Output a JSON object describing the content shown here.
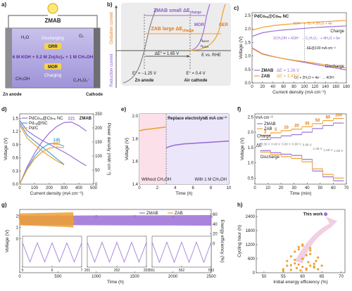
{
  "diagrams": {
    "a": {
      "panel": "a)",
      "title": "ZMAB",
      "discharging": "Discharging",
      "orr": "ORR",
      "electrolyte": "6 M KOH + 0.2 M Zn(Ac)₂ + 1 M CH₃OH",
      "mor": "MOR",
      "charging": "Charging",
      "anode": "Zn anode",
      "cathode": "Cathode",
      "species": [
        "H₂O",
        "O₂",
        "CH₃OH",
        "C₂H₃O₂⁻"
      ]
    },
    "b": {
      "panel": "b)",
      "zmab": "ZMAB small ΔE",
      "zab": "ZAB large ΔE",
      "sub": "charge",
      "oxidation": "Oxidation current",
      "reduction": "Reduction current",
      "mor": "MOR",
      "oer": "OER",
      "delta": "ΔE° = 1.65 V",
      "eta": "η",
      "eta_mor": "MOR",
      "eta_oer": "OER",
      "axis": "E vs. RHE",
      "e_zn": "E° = −1.25 V",
      "zn": "Zn anode",
      "e_air": "E° = 0.4 V",
      "air": "Air cathode"
    }
  },
  "chart_data": [
    {
      "type": "line",
      "panel": "c)",
      "title": "PdCoₛₐ@Coₙₚ NC",
      "xlabel": "Current density (mA cm⁻²)",
      "ylabel": "Voltage (V)",
      "x": [
        0,
        20,
        40,
        60,
        80,
        100,
        120,
        140,
        160,
        180
      ],
      "xlim": [
        0,
        180
      ],
      "xticks": [
        0,
        20,
        40,
        60,
        80,
        100,
        120,
        140,
        160,
        180
      ],
      "ylim": [
        0,
        2.6
      ],
      "yticks": [
        {
          "value": 0,
          "label": "0.0"
        },
        0.5,
        {
          "value": 1,
          "label": "1.0"
        },
        1.5,
        {
          "value": 2,
          "label": "2.0"
        },
        2.5
      ],
      "series": [
        {
          "name": "ZMAB",
          "note": "ΔE = 1.26 V",
          "color": "#9b6fd6",
          "charge": [
            1.72,
            1.86,
            1.92,
            1.96,
            1.99,
            2.02,
            2.05,
            2.07,
            2.09,
            2.11
          ],
          "discharge": [
            1.3,
            1.08,
            0.98,
            0.9,
            0.83,
            0.76,
            0.69,
            0.62,
            0.55,
            0.48
          ]
        },
        {
          "name": "ZAB",
          "note": "ΔE = 1.43 V",
          "color": "#f0a030",
          "charge": [
            1.95,
            2.06,
            2.12,
            2.16,
            2.19,
            2.22,
            2.25,
            2.27,
            2.29,
            2.31
          ],
          "discharge": [
            1.28,
            1.06,
            0.97,
            0.9,
            0.84,
            0.79,
            0.73,
            0.67,
            0.61,
            0.55
          ]
        }
      ],
      "annotations": {
        "charge": "Charge",
        "discharge": "Discharge",
        "delta": "ΔE@100 mA cm⁻²",
        "eq1": "4OH⁻ → O₂ + 2H₂O + 4e⁻",
        "eq2": "2CH₃OH + 6OH⁻ → C₂H₃O₂⁻ + 4H₂O + 6e⁻",
        "eq3": "O₂ + 2H₂O + 4e⁻ → 4OH⁻"
      }
    },
    {
      "type": "polarization",
      "panel": "d)",
      "title": "ZMAB",
      "xlabel": "Current density (mA cm⁻²)",
      "ylabel": "Voltage (V)",
      "y2label": "Power density (mW cm⁻²)",
      "x": [
        0,
        50,
        100,
        150,
        200,
        250,
        300,
        350,
        400,
        450
      ],
      "xlim": [
        0,
        500
      ],
      "xticks": [
        0,
        100,
        200,
        300,
        400,
        500
      ],
      "ylim": [
        0,
        1.6
      ],
      "yticks": [
        {
          "value": 0,
          "label": "0.0"
        },
        0.3,
        0.6,
        0.9,
        1.2,
        1.5
      ],
      "y2lim": [
        0,
        250
      ],
      "y2ticks": [
        0,
        50,
        100,
        150,
        200,
        250
      ],
      "series": [
        {
          "name": "PdCoₛₐ@Coₙₚ NC",
          "color": "#9b6fd6",
          "peak": 7,
          "voltage": [
            1.45,
            1.22,
            1.1,
            1.0,
            0.91,
            0.82,
            0.73,
            0.63,
            0.52,
            0.42
          ],
          "power": [
            0,
            61,
            110,
            150,
            182,
            205,
            219,
            221,
            208,
            189
          ]
        },
        {
          "name": "Pdₛₐ@NC",
          "color": "#4aa3d8",
          "peak": 5,
          "voltage": [
            1.4,
            1.12,
            0.98,
            0.85,
            0.72,
            0.58,
            0.45,
            null,
            null,
            null
          ],
          "power": [
            0,
            56,
            98,
            128,
            144,
            145,
            135,
            null,
            null,
            null
          ]
        },
        {
          "name": "Pd/C",
          "color": "#f0a030",
          "peak": 5,
          "voltage": [
            1.35,
            1.05,
            0.9,
            0.76,
            0.64,
            0.53,
            0.44,
            null,
            null,
            null
          ],
          "power": [
            0,
            52,
            90,
            114,
            128,
            132,
            130,
            null,
            null,
            null
          ]
        }
      ]
    },
    {
      "type": "line",
      "panel": "e)",
      "xlabel": "Time (h)",
      "ylabel": "Voltage (V)",
      "xlim": [
        0,
        10
      ],
      "xticks": [
        0,
        2,
        4,
        6,
        8,
        10
      ],
      "ylim": [
        1.4,
        2.02
      ],
      "yticks": [
        1.4,
        1.6,
        1.8,
        {
          "value": 2,
          "label": "2.0"
        }
      ],
      "switch": 3,
      "series": [
        {
          "color": "#f0a030",
          "x": [
            0,
            0.5,
            1,
            1.5,
            2,
            2.5,
            3
          ],
          "values": [
            1.87,
            1.88,
            1.885,
            1.89,
            1.895,
            1.9,
            1.905
          ]
        },
        {
          "color": "#9b6fd6",
          "x": [
            3,
            3.5,
            4,
            5,
            6,
            7,
            8,
            9,
            10
          ],
          "values": [
            1.72,
            1.735,
            1.745,
            1.755,
            1.76,
            1.765,
            1.77,
            1.775,
            1.78
          ]
        }
      ],
      "annotations": {
        "replace": "Replace electrolyte",
        "current": "5 mA cm⁻²",
        "without": "Without CH₃OH",
        "with": "With 1 M CH₃OH"
      }
    },
    {
      "type": "step",
      "panel": "f)",
      "xlabel": "Time (min)",
      "ylabel": "Voltage (V)",
      "unit": "mA cm⁻²",
      "xlim": [
        0,
        70
      ],
      "xticks": [
        0,
        10,
        20,
        30,
        40,
        50,
        60,
        70
      ],
      "ylim": [
        0.3,
        2.6
      ],
      "yticks": [
        0.5,
        {
          "value": 1,
          "label": "1.0"
        },
        1.5,
        {
          "value": 2,
          "label": "2.0"
        },
        2.5
      ],
      "edges": [
        4,
        12,
        20,
        28,
        36,
        44,
        52,
        60,
        68
      ],
      "currents": [
        2,
        5,
        10,
        20,
        30,
        50,
        80,
        100
      ],
      "series": [
        {
          "name": "ZMAB",
          "color": "#9b6fd6",
          "charge": [
            1.76,
            1.82,
            1.88,
            1.92,
            2.0,
            2.12,
            2.22,
            2.3
          ],
          "discharge": [
            1.4,
            1.33,
            1.28,
            1.24,
            1.11,
            0.73,
            0.54,
            0.41
          ]
        },
        {
          "name": "ZAB",
          "color": "#f0a030",
          "charge": [
            1.9,
            1.98,
            2.05,
            2.1,
            2.18,
            2.28,
            2.38,
            2.45
          ],
          "discharge": [
            1.35,
            1.27,
            1.2,
            1.14,
            1.03,
            0.8,
            0.62,
            0.5
          ]
        }
      ],
      "annotations": {
        "charge": "Charge",
        "discharge": "Discharge",
        "delta": "ΔE",
        "delta_labels": [
          "0.36 V",
          "0.49 V",
          "0.60 V",
          "0.68 V",
          "0.89 V",
          "1.39 V",
          "1.68 V",
          "1.89 V"
        ]
      }
    },
    {
      "type": "cycling",
      "panel": "g)",
      "xlabel": "Time (h)",
      "ylabel": "Voltage (V)",
      "y2label": "Energy efficiency (%)",
      "xlim": [
        0,
        2500
      ],
      "xticks": [
        0,
        500,
        1000,
        1500,
        2000,
        2500
      ],
      "ylim": [
        -3,
        2.6
      ],
      "yticks": [
        0,
        1,
        2
      ],
      "y2lim": [
        -60,
        70
      ],
      "y2ticks": [
        0,
        20,
        40,
        60
      ],
      "series": [
        {
          "name": "ZMAB",
          "color": "#9b6fd6",
          "x": [
            0,
            500,
            1000,
            1500,
            2000,
            2500
          ],
          "charge": [
            2.05,
            2.06,
            2.07,
            2.08,
            2.09,
            2.1
          ],
          "discharge": [
            1.22,
            1.21,
            1.2,
            1.19,
            1.18,
            1.17
          ],
          "efficiency": [
            57,
            57,
            56,
            56,
            55,
            55
          ]
        },
        {
          "name": "ZAB",
          "color": "#f0a030",
          "x": [
            0,
            200,
            400,
            600,
            700
          ],
          "charge": [
            2.25,
            2.28,
            2.3,
            2.33,
            2.35
          ],
          "discharge": [
            1.2,
            1.15,
            1.1,
            1.05,
            1.0
          ],
          "efficiency": [
            52,
            50,
            48,
            46,
            45
          ]
        }
      ],
      "insets": [
        {
          "xlim": [
            5,
            7
          ],
          "xticks": [
            5,
            6,
            7
          ],
          "ylim": [
            1,
            2.3
          ],
          "x": [
            5,
            5.25,
            5.5,
            5.75,
            6,
            6.25,
            6.5,
            6.75,
            7
          ],
          "values": [
            2.02,
            1.22,
            2.02,
            1.22,
            2.02,
            1.22,
            2.02,
            1.22,
            2.02
          ]
        },
        {
          "xlim": [
            201,
            203
          ],
          "xticks": [
            201,
            202,
            203
          ],
          "ylim": [
            1,
            2.3
          ],
          "x": [
            201,
            201.25,
            201.5,
            201.75,
            202,
            202.25,
            202.5,
            202.75,
            203
          ],
          "values": [
            2.04,
            1.21,
            2.04,
            1.21,
            2.04,
            1.21,
            2.04,
            1.21,
            2.04
          ]
        },
        {
          "xlim": [
            551,
            553
          ],
          "xticks": [
            551,
            552,
            553
          ],
          "ylim": [
            1,
            2.3
          ],
          "x": [
            551,
            551.25,
            551.5,
            551.75,
            552,
            552.25,
            552.5,
            552.75,
            553
          ],
          "values": [
            2.05,
            1.2,
            2.05,
            1.2,
            2.05,
            1.2,
            2.05,
            1.2,
            2.05
          ]
        }
      ]
    },
    {
      "type": "scatter",
      "panel": "h)",
      "xlabel": "Initial energy efficiency (%)",
      "ylabel": "Cycling hour (h)",
      "xlim": [
        48,
        71
      ],
      "xticks": [
        50,
        55,
        60,
        65,
        70
      ],
      "ylim": [
        0,
        2700
      ],
      "yticks": [
        0,
        600,
        1200,
        1800,
        2400
      ],
      "color": "#f0a030",
      "x": [
        55,
        56,
        57,
        58,
        58.5,
        59,
        59.5,
        60,
        60,
        61,
        61.5,
        62,
        62,
        63,
        63.5,
        64,
        57,
        58,
        59,
        60,
        61,
        62,
        63,
        55,
        56,
        62,
        64,
        65,
        60,
        58,
        61,
        63,
        57,
        59
      ],
      "y": [
        150,
        300,
        120,
        400,
        200,
        350,
        100,
        250,
        600,
        180,
        450,
        300,
        800,
        220,
        500,
        150,
        700,
        900,
        1000,
        1200,
        750,
        1050,
        380,
        80,
        500,
        950,
        650,
        300,
        1150,
        550,
        130,
        270,
        320,
        1100
      ],
      "highlight": {
        "label": "This work",
        "x": 66,
        "y": 2500,
        "color": "#9b6fd6"
      }
    }
  ]
}
